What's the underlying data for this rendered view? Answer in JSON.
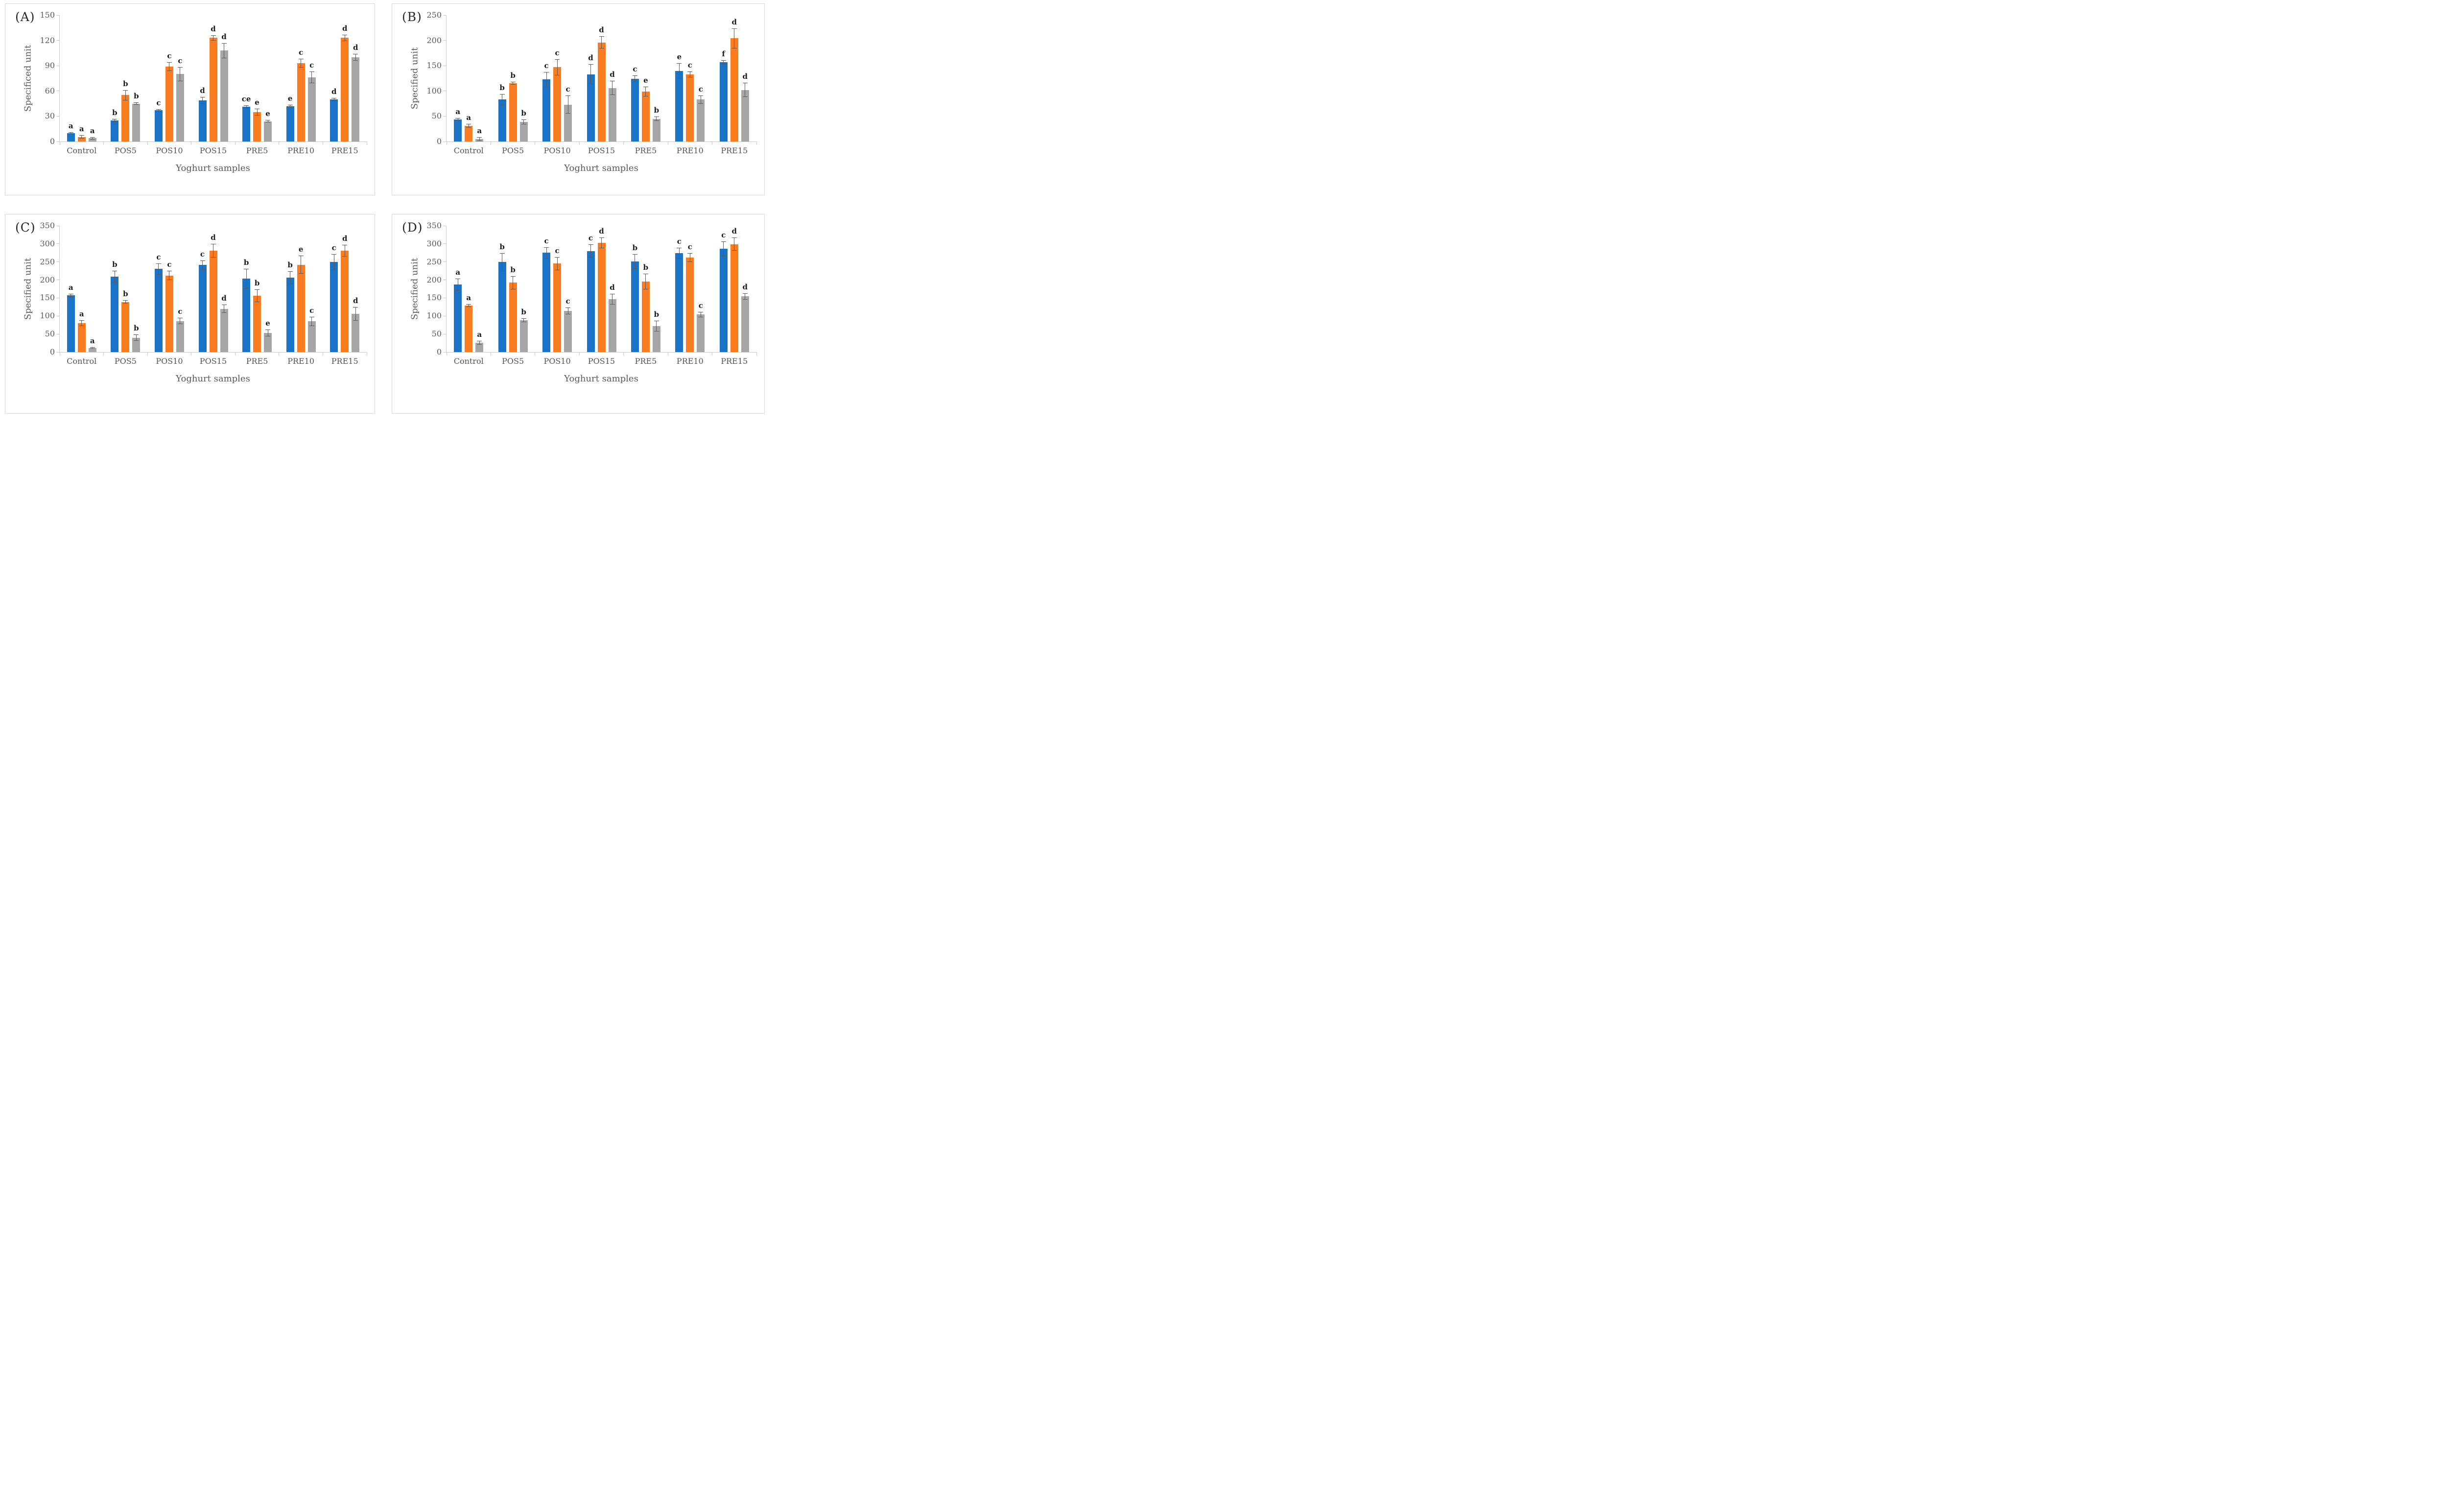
{
  "colors": {
    "series": [
      "#1B73C8",
      "#F97C20",
      "#A6A6A6"
    ],
    "error_bar": "#595959",
    "axis_line": "#C9C9C9",
    "tick_text": "#595959",
    "panel_border": "#D8D8D8"
  },
  "chart_data": [
    {
      "type": "bar",
      "panel_label": "(A)",
      "ylabel": "Specificed unit",
      "xlabel": "Yoghurt samples",
      "ylim": [
        0,
        150
      ],
      "ytick_step": 30,
      "grid": false,
      "legend": "none",
      "categories": [
        "Control",
        "POS5",
        "POS10",
        "POS15",
        "PRE5",
        "PRE10",
        "PRE15"
      ],
      "series": [
        {
          "key": "blue",
          "values": [
            10,
            25,
            37,
            49,
            41,
            42,
            50
          ],
          "errors": [
            1,
            1.5,
            1.5,
            4,
            2,
            1.5,
            1.5
          ],
          "letters": [
            "a",
            "b",
            "c",
            "d",
            "ce",
            "e",
            "d"
          ]
        },
        {
          "key": "orange",
          "values": [
            5.5,
            55,
            89,
            123,
            35,
            93,
            123
          ],
          "errors": [
            2,
            6,
            5,
            3,
            4,
            5,
            4
          ],
          "letters": [
            "a",
            "b",
            "c",
            "d",
            "e",
            "c",
            "d"
          ]
        },
        {
          "key": "gray",
          "values": [
            4,
            45,
            80,
            108,
            24,
            76,
            100
          ],
          "errors": [
            1.5,
            1.5,
            8.5,
            9,
            1.5,
            7,
            4
          ],
          "letters": [
            "a",
            "b",
            "c",
            "d",
            "e",
            "c",
            "d"
          ]
        }
      ]
    },
    {
      "type": "bar",
      "panel_label": "(B)",
      "ylabel": "Specified unit",
      "xlabel": "Yoghurt samples",
      "ylim": [
        0,
        250
      ],
      "ytick_step": 50,
      "grid": false,
      "legend": "none",
      "categories": [
        "Control",
        "POS5",
        "POS10",
        "POS15",
        "PRE5",
        "PRE10",
        "PRE15"
      ],
      "series": [
        {
          "key": "blue",
          "values": [
            44,
            83,
            123,
            133,
            124,
            140,
            157
          ],
          "errors": [
            3,
            11,
            15,
            20,
            7,
            15,
            4
          ],
          "letters": [
            "a",
            "b",
            "c",
            "d",
            "c",
            "e",
            "f"
          ]
        },
        {
          "key": "orange",
          "values": [
            31,
            115,
            147,
            196,
            99,
            133,
            204
          ],
          "errors": [
            4,
            3,
            16,
            12,
            10,
            6,
            20
          ],
          "letters": [
            "a",
            "b",
            "c",
            "d",
            "e",
            "c",
            "d"
          ]
        },
        {
          "key": "gray",
          "values": [
            5,
            39,
            73,
            106,
            45,
            83,
            102
          ],
          "errors": [
            4,
            5,
            18,
            14,
            4,
            8,
            14
          ],
          "letters": [
            "a",
            "b",
            "c",
            "d",
            "b",
            "c",
            "d"
          ]
        }
      ]
    },
    {
      "type": "bar",
      "panel_label": "(C)",
      "ylabel": "Specified unit",
      "xlabel": "Yoghurt samples",
      "ylim": [
        0,
        350
      ],
      "ytick_step": 50,
      "grid": false,
      "legend": "none",
      "categories": [
        "Control",
        "POS5",
        "POS10",
        "POS15",
        "PRE5",
        "PRE10",
        "PRE15"
      ],
      "series": [
        {
          "key": "blue",
          "values": [
            157,
            209,
            230,
            241,
            203,
            206,
            249
          ],
          "errors": [
            5,
            16,
            16,
            13,
            27,
            18,
            22
          ],
          "letters": [
            "a",
            "b",
            "c",
            "c",
            "b",
            "b",
            "c"
          ]
        },
        {
          "key": "orange",
          "values": [
            80,
            139,
            212,
            281,
            156,
            242,
            281
          ],
          "errors": [
            8,
            5,
            13,
            19,
            17,
            25,
            16
          ],
          "letters": [
            "a",
            "b",
            "c",
            "d",
            "b",
            "e",
            "d"
          ]
        },
        {
          "key": "gray",
          "values": [
            11,
            40,
            86,
            120,
            53,
            85,
            106
          ],
          "errors": [
            2,
            9,
            9,
            12,
            10,
            13,
            19
          ],
          "letters": [
            "a",
            "b",
            "c",
            "d",
            "e",
            "c",
            "d"
          ]
        }
      ]
    },
    {
      "type": "bar",
      "panel_label": "(D)",
      "ylabel": "Specified unit",
      "xlabel": "Yoghurt samples",
      "ylim": [
        0,
        350
      ],
      "ytick_step": 50,
      "grid": false,
      "legend": "none",
      "categories": [
        "Control",
        "POS5",
        "POS10",
        "POS15",
        "PRE5",
        "PRE10",
        "PRE15"
      ],
      "series": [
        {
          "key": "blue",
          "values": [
            187,
            249,
            275,
            280,
            251,
            274,
            286
          ],
          "errors": [
            16,
            25,
            16,
            18,
            20,
            15,
            20
          ],
          "letters": [
            "a",
            "b",
            "c",
            "c",
            "b",
            "c",
            "c"
          ]
        },
        {
          "key": "orange",
          "values": [
            129,
            192,
            245,
            302,
            195,
            262,
            299
          ],
          "errors": [
            4,
            18,
            18,
            15,
            22,
            12,
            18
          ],
          "letters": [
            "a",
            "b",
            "c",
            "d",
            "b",
            "c",
            "d"
          ]
        },
        {
          "key": "gray",
          "values": [
            26,
            88,
            114,
            147,
            72,
            104,
            154
          ],
          "errors": [
            5,
            5,
            9,
            15,
            15,
            7,
            9
          ],
          "letters": [
            "a",
            "b",
            "c",
            "d",
            "b",
            "c",
            "d"
          ]
        }
      ]
    }
  ]
}
